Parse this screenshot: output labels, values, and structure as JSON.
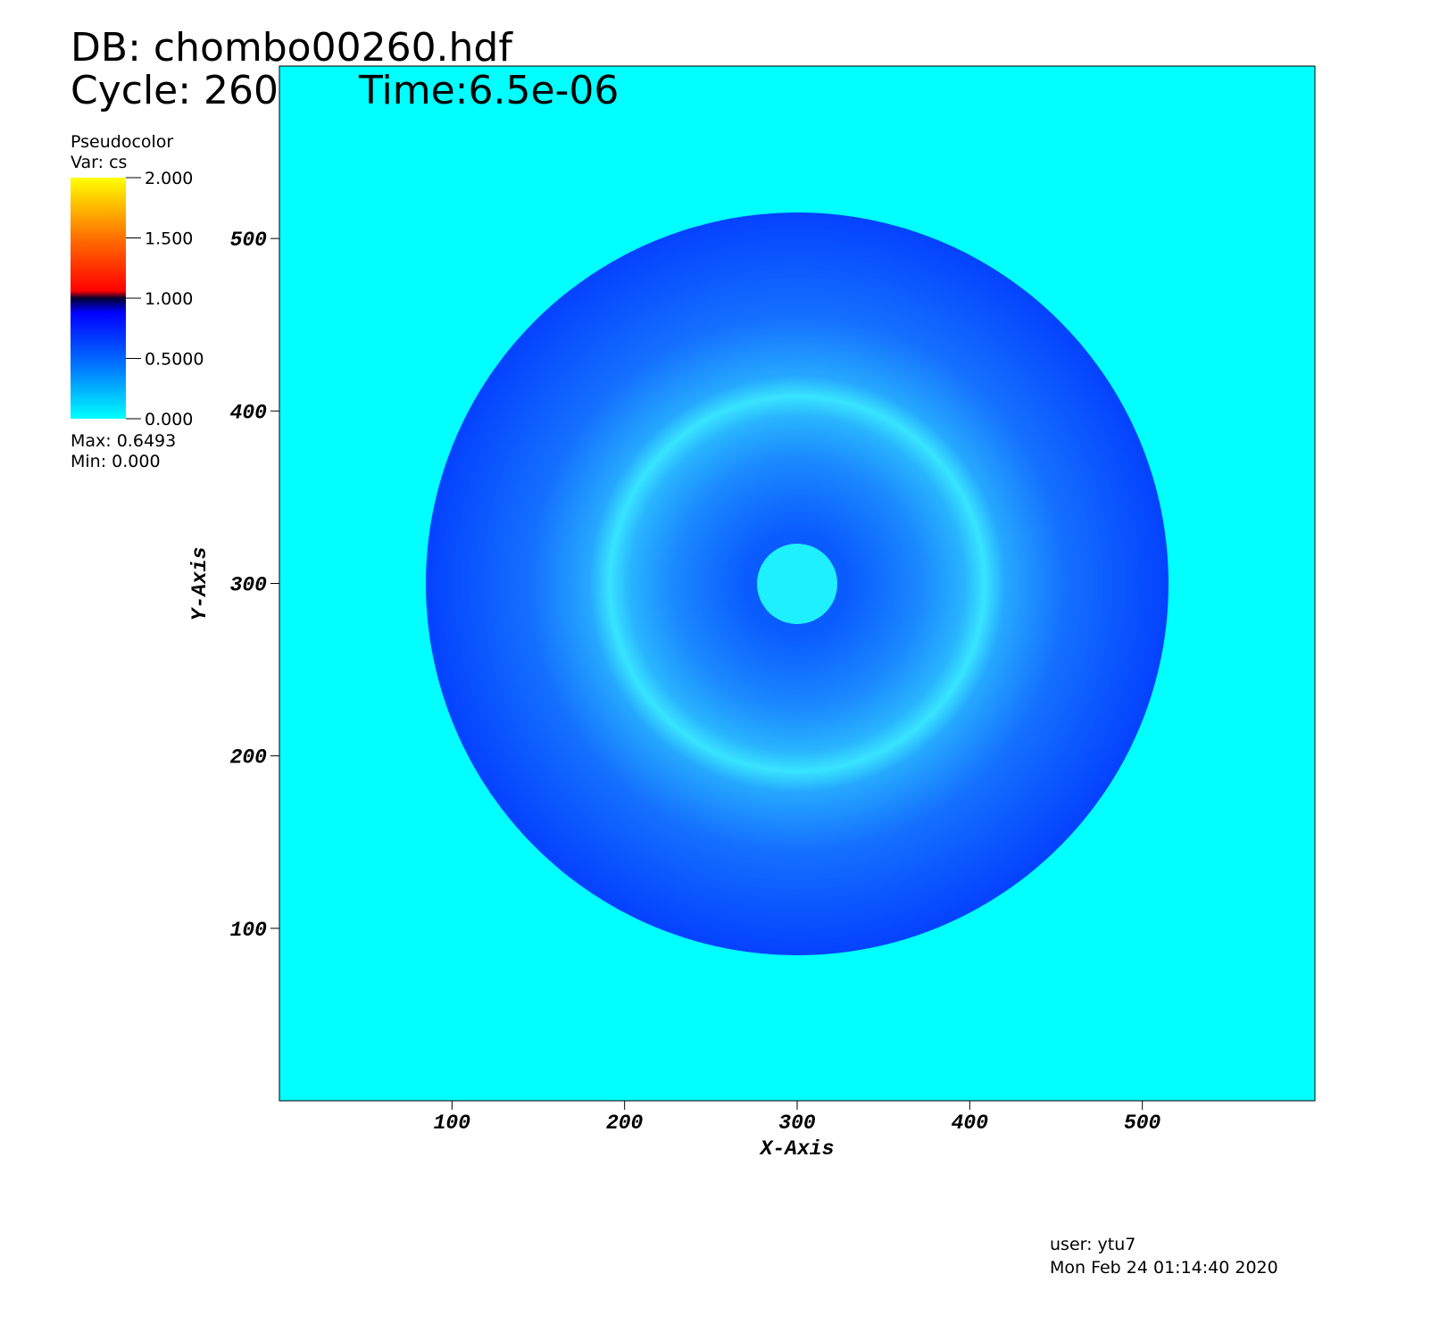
{
  "chart_data": {
    "type": "pseudocolor",
    "header": {
      "database": "DB: chombo00260.hdf",
      "cycle": "Cycle: 260",
      "time": "Time:6.5e-06"
    },
    "x_label": "X-Axis",
    "y_label": "Y-Axis",
    "xlim": [
      0,
      600
    ],
    "ylim": [
      0,
      600
    ],
    "xticks": [
      100,
      200,
      300,
      400,
      500
    ],
    "yticks": [
      100,
      200,
      300,
      400,
      500
    ],
    "legend": {
      "title": "Pseudocolor",
      "variable": "Var: cs",
      "clim": [
        0,
        2
      ],
      "ticks": [
        {
          "value": 2,
          "label": "2.000"
        },
        {
          "value": 1.5,
          "label": "1.500"
        },
        {
          "value": 1,
          "label": "1.000"
        },
        {
          "value": 0.5,
          "label": "0.5000"
        },
        {
          "value": 0,
          "label": "0.000"
        }
      ],
      "max": "Max:  0.6493",
      "min": "Min:  0.000"
    },
    "footer": {
      "user": "user: ytu7",
      "date": "Mon Feb 24 01:14:40 2020"
    }
  }
}
